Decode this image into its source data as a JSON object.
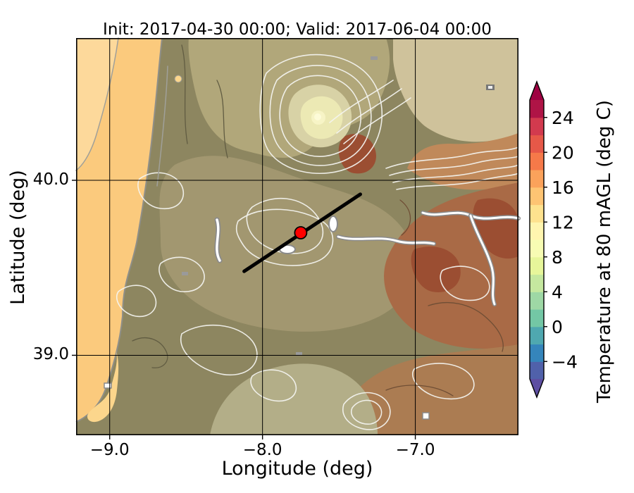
{
  "title": "Init: 2017-04-30 00:00; Valid: 2017-06-04 00:00",
  "axes": {
    "xlabel": "Longitude (deg)",
    "ylabel": "Latitude (deg)",
    "xticks": [
      "−9.0",
      "−8.0",
      "−7.0"
    ],
    "xtick_values": [
      -9,
      -8,
      -7
    ],
    "yticks": [
      "40.0",
      "39.0"
    ],
    "ytick_values": [
      40,
      39
    ],
    "xlim": [
      -9.22,
      -6.325
    ],
    "ylim": [
      38.543,
      40.813
    ],
    "grid": "on",
    "background": "#ffffff"
  },
  "colorbar": {
    "label": "Temperature at 80 mAGL (deg C)",
    "ticks": [
      "24",
      "20",
      "16",
      "12",
      "8",
      "4",
      "0",
      "−4"
    ],
    "tick_values": [
      24,
      20,
      16,
      12,
      8,
      4,
      0,
      -4
    ],
    "value_min": -6,
    "value_max": 26,
    "level_step": 2,
    "extend": "both",
    "band_colors": [
      "#5061aa",
      "#3585bb",
      "#4fa8b0",
      "#73c7a5",
      "#9ed8a5",
      "#c5e89f",
      "#e7f69a",
      "#f7fcb3",
      "#fff5af",
      "#fee28e",
      "#fec473",
      "#fba25b",
      "#f67949",
      "#e65848",
      "#d23a4e",
      "#af1446"
    ],
    "under_color": "#5e4fa2",
    "over_color": "#9e0142",
    "colormap": "Spectral_r"
  },
  "map": {
    "marker": {
      "lon": -7.75,
      "lat": 39.7,
      "color": "#ff0000",
      "edge_color": "#000000"
    },
    "transect": {
      "from": {
        "lon": -8.12,
        "lat": 39.48
      },
      "to": {
        "lon": -7.36,
        "lat": 39.92
      },
      "color": "#000000"
    },
    "palette": {
      "ocean": "#fbca7d",
      "ocean_light": "#fdd99b",
      "estuary": "#fcd68c",
      "land_olive": "#8d8660",
      "olive_tan": "#a29770",
      "khaki": "#b1a77a",
      "pale_tan": "#cfc29b",
      "orange_band": "#c0895a",
      "red_brown": "#a96a46",
      "deep_red": "#9b4e32",
      "bottom_tan": "#ab7c52",
      "pale_green": "#b3ae88",
      "mountain_pale": "#f7f4c6"
    }
  },
  "chart_data": {
    "type": "heatmap",
    "subtype": "filled_contour_map",
    "title": "Init: 2017-04-30 00:00; Valid: 2017-06-04 00:00",
    "init_time": "2017-04-30 00:00",
    "valid_time": "2017-06-04 00:00",
    "variable": "Temperature at 80 mAGL (deg C)",
    "xlabel": "Longitude (deg)",
    "ylabel": "Latitude (deg)",
    "lon_range": [
      -9.22,
      -6.325
    ],
    "lat_range": [
      38.543,
      40.813
    ],
    "grid_lons": [
      -9,
      -8,
      -7
    ],
    "grid_lats": [
      39,
      40
    ],
    "contour_levels_degC": [
      -6,
      -4,
      -2,
      0,
      2,
      4,
      6,
      8,
      10,
      12,
      14,
      16,
      18,
      20,
      22,
      24,
      26
    ],
    "colorbar_ticks_degC": [
      -4,
      0,
      4,
      8,
      12,
      16,
      20,
      24
    ],
    "colorbar_extend": "both",
    "marker_point": {
      "lon": -7.75,
      "lat": 39.7
    },
    "cross_section_line": {
      "lon_from": -8.12,
      "lat_from": 39.48,
      "lon_to": -7.36,
      "lat_to": 39.92
    },
    "temperature_reading_degC": {
      "atlantic_ocean_west": 13,
      "coastal_lowlands": 14,
      "central_highlands": 10,
      "mountain_summit_area": 7,
      "eastern_inland": 21,
      "southeast": 18
    },
    "legend_position": "right colorbar"
  }
}
